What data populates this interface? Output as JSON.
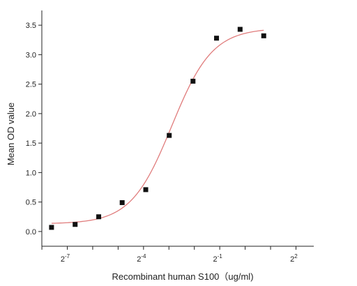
{
  "chart_data": {
    "type": "scatter",
    "xlabel": "Recombinant human  S100（ug/ml)",
    "ylabel": "Mean OD value",
    "x_scale": "log2",
    "xlim": [
      0.0039,
      6.5
    ],
    "ylim": [
      -0.25,
      3.75
    ],
    "x_ticks": [
      {
        "value": 0.0078125,
        "base": "2",
        "exp": "-7"
      },
      {
        "value": 0.0625,
        "base": "2",
        "exp": "-4"
      },
      {
        "value": 0.5,
        "base": "2",
        "exp": "-1"
      },
      {
        "value": 4,
        "base": "2",
        "exp": "2"
      }
    ],
    "x_minor_ticks": [
      0.00390625,
      0.015625,
      0.03125,
      0.125,
      0.25,
      1,
      2
    ],
    "y_ticks": [
      {
        "value": 0.0,
        "label": "0.0"
      },
      {
        "value": 0.5,
        "label": "0.5"
      },
      {
        "value": 1.0,
        "label": "1.0"
      },
      {
        "value": 1.5,
        "label": "1.5"
      },
      {
        "value": 2.0,
        "label": "2.0"
      },
      {
        "value": 2.5,
        "label": "2.5"
      },
      {
        "value": 3.0,
        "label": "3.0"
      },
      {
        "value": 3.5,
        "label": "3.5"
      }
    ],
    "points": [
      {
        "x": 0.00508,
        "y": 0.07
      },
      {
        "x": 0.00967,
        "y": 0.12
      },
      {
        "x": 0.0184,
        "y": 0.25
      },
      {
        "x": 0.0349,
        "y": 0.49
      },
      {
        "x": 0.0664,
        "y": 0.71
      },
      {
        "x": 0.126,
        "y": 1.63
      },
      {
        "x": 0.241,
        "y": 2.55
      },
      {
        "x": 0.458,
        "y": 3.28
      },
      {
        "x": 0.871,
        "y": 3.43
      },
      {
        "x": 1.66,
        "y": 3.32
      }
    ],
    "fit": {
      "model": "4PL",
      "bottom": 0.13,
      "top": 3.45,
      "ec50": 0.135,
      "hill": 1.8,
      "x_range": [
        0.00508,
        1.66
      ]
    },
    "colors": {
      "curve": "#e07c7c",
      "points": "#111111",
      "axis": "#222222"
    },
    "grid": false,
    "legend": "none"
  }
}
